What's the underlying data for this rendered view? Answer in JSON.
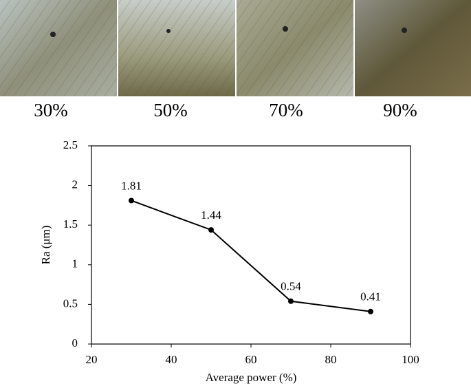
{
  "panels": [
    {
      "label": "30%"
    },
    {
      "label": "50%"
    },
    {
      "label": "70%"
    },
    {
      "label": "90%"
    }
  ],
  "chart_data": {
    "type": "line",
    "x_label": "Average power (%)",
    "y_label": "Ra (μm)",
    "x": [
      30,
      50,
      70,
      90
    ],
    "values": [
      1.81,
      1.44,
      0.54,
      0.41
    ],
    "color": "#000000",
    "xlim": [
      20,
      100
    ],
    "xticks": [
      20,
      40,
      60,
      80,
      100
    ],
    "ylim": [
      0,
      2.5
    ],
    "yticks": [
      0,
      0.5,
      1,
      1.5,
      2,
      2.5
    ],
    "grid": false
  }
}
